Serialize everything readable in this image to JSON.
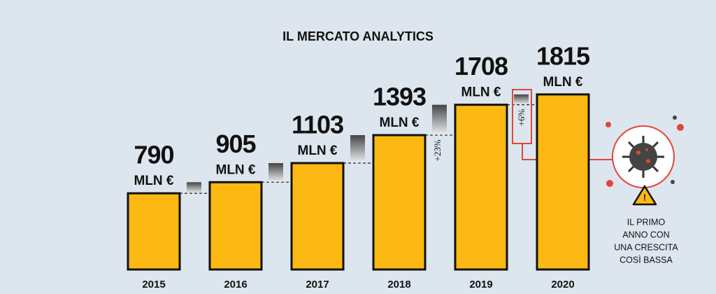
{
  "chart_data": {
    "type": "bar",
    "title": "IL MERCATO ANALYTICS",
    "categories": [
      "2015",
      "2016",
      "2017",
      "2018",
      "2019",
      "2020"
    ],
    "values": [
      790,
      905,
      1103,
      1393,
      1708,
      1815
    ],
    "unit": "MLN €",
    "color": "#fdb913",
    "growth_labels": [
      "+23%",
      "+6%"
    ],
    "note": [
      "IL PRIMO",
      "ANNO CON",
      "UNA CRESCITA",
      "COSÌ BASSA"
    ]
  }
}
